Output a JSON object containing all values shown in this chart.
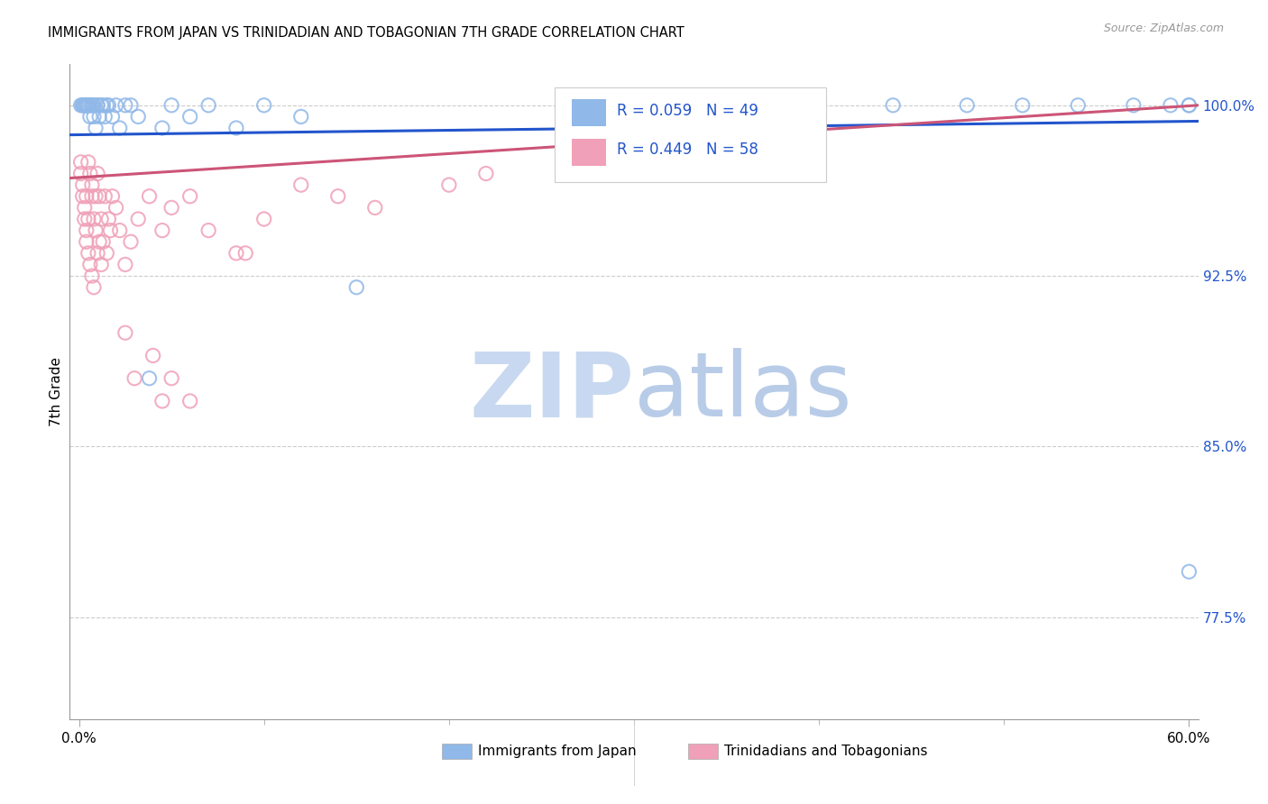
{
  "title": "IMMIGRANTS FROM JAPAN VS TRINIDADIAN AND TOBAGONIAN 7TH GRADE CORRELATION CHART",
  "source": "Source: ZipAtlas.com",
  "ylabel": "7th Grade",
  "legend_label1": "Immigrants from Japan",
  "legend_label2": "Trinidadians and Tobagonians",
  "R1": 0.059,
  "N1": 49,
  "R2": 0.449,
  "N2": 58,
  "color_japan": "#90b8e8",
  "color_tnt": "#f0a0b8",
  "color_japan_line": "#2255cc",
  "color_tnt_line": "#cc5577",
  "color_text_blue": "#2255cc",
  "color_tnt_text": "#cc3366",
  "watermark_zip_color": "#c8d8f0",
  "watermark_atlas_color": "#b8cce8",
  "yticks": [
    1.0,
    0.925,
    0.85,
    0.775
  ],
  "ytick_labels": [
    "100.0%",
    "92.5%",
    "85.0%",
    "77.5%"
  ],
  "japan_x": [
    0.001,
    0.002,
    0.002,
    0.003,
    0.003,
    0.004,
    0.004,
    0.005,
    0.005,
    0.006,
    0.006,
    0.007,
    0.007,
    0.008,
    0.008,
    0.009,
    0.01,
    0.01,
    0.011,
    0.012,
    0.013,
    0.014,
    0.015,
    0.016,
    0.018,
    0.02,
    0.022,
    0.025,
    0.028,
    0.032,
    0.038,
    0.045,
    0.05,
    0.06,
    0.07,
    0.085,
    0.1,
    0.12,
    0.15,
    0.38,
    0.44,
    0.48,
    0.51,
    0.54,
    0.57,
    0.59,
    0.6,
    0.6,
    0.6
  ],
  "japan_y": [
    1.0,
    1.0,
    1.0,
    1.0,
    1.0,
    1.0,
    1.0,
    1.0,
    1.0,
    1.0,
    0.995,
    1.0,
    1.0,
    0.995,
    1.0,
    0.99,
    1.0,
    1.0,
    0.995,
    1.0,
    1.0,
    0.995,
    1.0,
    1.0,
    0.995,
    1.0,
    0.99,
    1.0,
    1.0,
    0.995,
    0.88,
    0.99,
    1.0,
    0.995,
    1.0,
    0.99,
    1.0,
    0.995,
    0.92,
    1.0,
    1.0,
    1.0,
    1.0,
    1.0,
    1.0,
    1.0,
    1.0,
    1.0,
    0.795
  ],
  "tnt_x": [
    0.001,
    0.001,
    0.002,
    0.002,
    0.003,
    0.003,
    0.004,
    0.004,
    0.004,
    0.005,
    0.005,
    0.005,
    0.006,
    0.006,
    0.007,
    0.007,
    0.007,
    0.008,
    0.008,
    0.009,
    0.009,
    0.01,
    0.01,
    0.011,
    0.011,
    0.012,
    0.012,
    0.013,
    0.014,
    0.015,
    0.016,
    0.017,
    0.018,
    0.02,
    0.022,
    0.025,
    0.028,
    0.032,
    0.038,
    0.045,
    0.05,
    0.06,
    0.07,
    0.085,
    0.1,
    0.12,
    0.14,
    0.16,
    0.2,
    0.22,
    0.025,
    0.03,
    0.04,
    0.045,
    0.05,
    0.06,
    0.09,
    0.38
  ],
  "tnt_y": [
    0.975,
    0.97,
    0.96,
    0.965,
    0.955,
    0.95,
    0.945,
    0.94,
    0.96,
    0.935,
    0.95,
    0.975,
    0.93,
    0.97,
    0.96,
    0.925,
    0.965,
    0.92,
    0.95,
    0.945,
    0.96,
    0.935,
    0.97,
    0.94,
    0.96,
    0.95,
    0.93,
    0.94,
    0.96,
    0.935,
    0.95,
    0.945,
    0.96,
    0.955,
    0.945,
    0.93,
    0.94,
    0.95,
    0.96,
    0.945,
    0.955,
    0.96,
    0.945,
    0.935,
    0.95,
    0.965,
    0.96,
    0.955,
    0.965,
    0.97,
    0.9,
    0.88,
    0.89,
    0.87,
    0.88,
    0.87,
    0.935,
    0.97
  ],
  "japan_trend": [
    0.987,
    0.993
  ],
  "tnt_trend": [
    0.968,
    1.0
  ],
  "xlim": [
    -0.005,
    0.605
  ],
  "ylim": [
    0.73,
    1.018
  ]
}
